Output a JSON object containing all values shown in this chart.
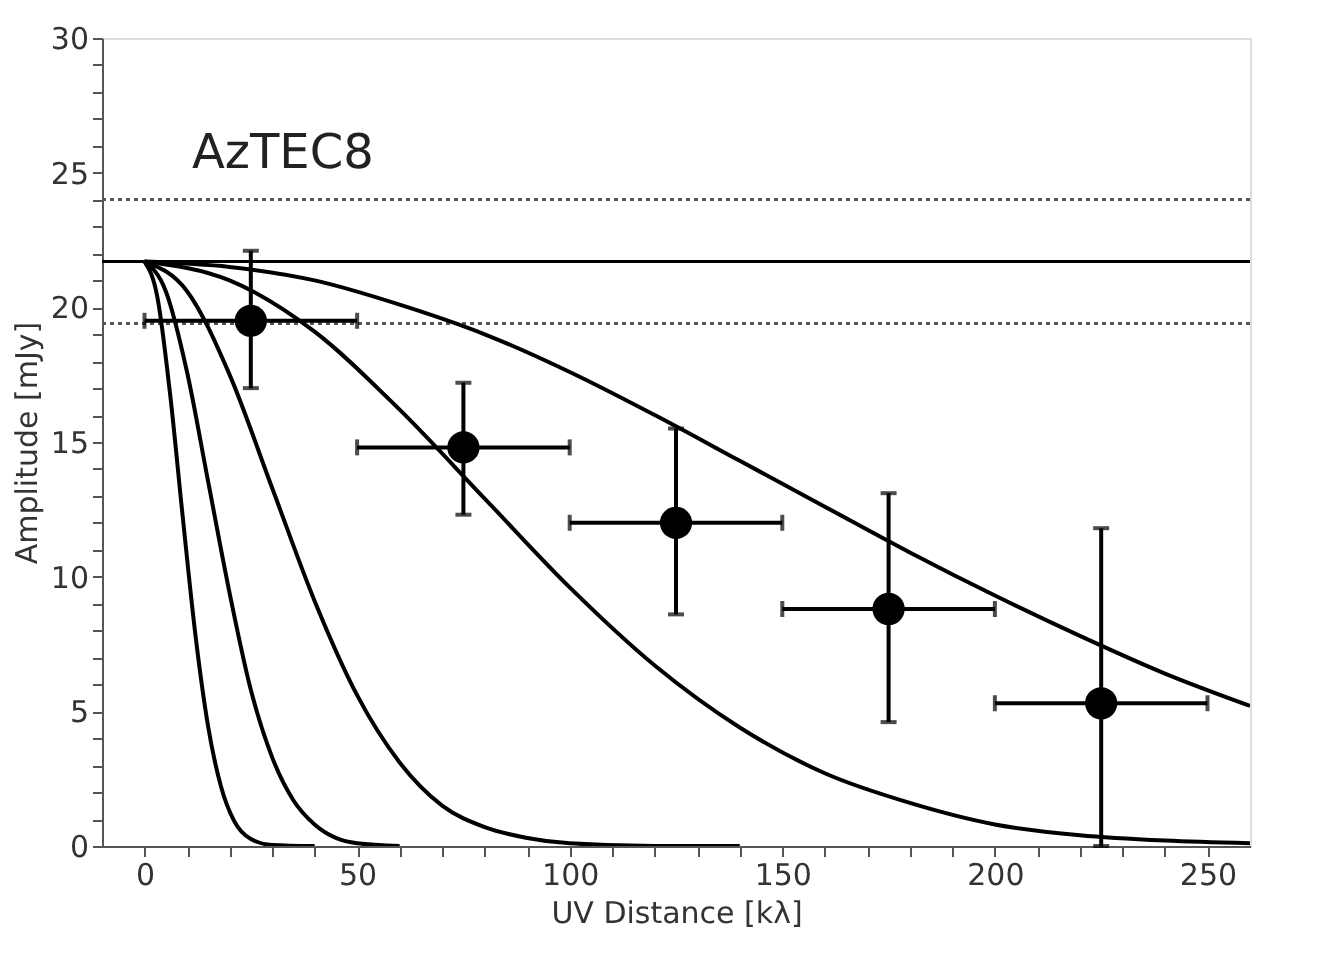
{
  "chart_data": {
    "type": "line",
    "xlabel": "UV Distance [kλ]",
    "ylabel": "Amplitude [mJy]",
    "xlim": [
      -10,
      260
    ],
    "ylim": [
      0,
      30
    ],
    "xticks": [
      0,
      {
        "value": 10,
        "label": null
      },
      {
        "value": 20,
        "label": null
      },
      {
        "value": 30,
        "label": null
      },
      {
        "value": 40,
        "label": null
      },
      50,
      {
        "value": 60,
        "label": null
      },
      {
        "value": 70,
        "label": null
      },
      {
        "value": 80,
        "label": null
      },
      {
        "value": 90,
        "label": null
      },
      100,
      {
        "value": 110,
        "label": null
      },
      {
        "value": 120,
        "label": null
      },
      {
        "value": 130,
        "label": null
      },
      {
        "value": 140,
        "label": null
      },
      150,
      {
        "value": 160,
        "label": null
      },
      {
        "value": 170,
        "label": null
      },
      {
        "value": 180,
        "label": null
      },
      {
        "value": 190,
        "label": null
      },
      200,
      {
        "value": 210,
        "label": null
      },
      {
        "value": 220,
        "label": null
      },
      {
        "value": 230,
        "label": null
      },
      {
        "value": 240,
        "label": null
      },
      250
    ],
    "yticks": [
      0,
      {
        "value": 1,
        "label": null
      },
      {
        "value": 2,
        "label": null
      },
      {
        "value": 3,
        "label": null
      },
      {
        "value": 4,
        "label": null
      },
      5,
      {
        "value": 6,
        "label": null
      },
      {
        "value": 7,
        "label": null
      },
      {
        "value": 8,
        "label": null
      },
      {
        "value": 9,
        "label": null
      },
      10,
      {
        "value": 11,
        "label": null
      },
      {
        "value": 12,
        "label": null
      },
      {
        "value": 13,
        "label": null
      },
      {
        "value": 14,
        "label": null
      },
      15,
      {
        "value": 16,
        "label": null
      },
      {
        "value": 17,
        "label": null
      },
      {
        "value": 18,
        "label": null
      },
      {
        "value": 19,
        "label": null
      },
      20,
      {
        "value": 21,
        "label": null
      },
      {
        "value": 22,
        "label": null
      },
      {
        "value": 23,
        "label": null
      },
      {
        "value": 24,
        "label": null
      },
      25,
      {
        "value": 26,
        "label": null
      },
      {
        "value": 27,
        "label": null
      },
      {
        "value": 28,
        "label": null
      },
      {
        "value": 29,
        "label": null
      },
      30
    ],
    "grid": false,
    "line_style": "solid",
    "marker": "none",
    "annotations": [
      "AzTEC8"
    ],
    "ref_lines": [
      {
        "axis": "y",
        "value": 21.7,
        "line_style": "solid",
        "color": "#000000"
      },
      {
        "axis": "y",
        "value": 24.0,
        "line_style": "dotted",
        "color": "#555555"
      },
      {
        "axis": "y",
        "value": 19.4,
        "line_style": "dotted",
        "color": "#555555"
      }
    ],
    "series": [
      {
        "color": "#000000",
        "x": [
          0,
          3,
          6,
          9,
          12,
          15,
          18,
          21,
          25,
          30,
          40
        ],
        "values": [
          21.7,
          20.4,
          16.8,
          12.2,
          7.8,
          4.4,
          2.2,
          0.95,
          0.26,
          0.04,
          0
        ]
      },
      {
        "color": "#000000",
        "x": [
          0,
          5,
          10,
          15,
          20,
          25,
          30,
          35,
          40,
          45,
          50,
          60
        ],
        "values": [
          21.7,
          20.6,
          17.6,
          13.5,
          9.4,
          5.8,
          3.3,
          1.7,
          0.8,
          0.3,
          0.1,
          0
        ]
      },
      {
        "color": "#000000",
        "x": [
          0,
          10,
          20,
          30,
          40,
          50,
          60,
          70,
          80,
          90,
          100,
          120,
          140
        ],
        "values": [
          21.7,
          20.6,
          17.5,
          13.3,
          9.1,
          5.6,
          3.1,
          1.5,
          0.7,
          0.3,
          0.1,
          0,
          0
        ]
      },
      {
        "color": "#000000",
        "x": [
          0,
          20,
          40,
          60,
          80,
          100,
          120,
          140,
          160,
          180,
          200,
          220,
          240,
          260
        ],
        "values": [
          21.7,
          21.0,
          19.1,
          16.2,
          12.9,
          9.6,
          6.7,
          4.4,
          2.7,
          1.6,
          0.8,
          0.4,
          0.2,
          0.1
        ]
      },
      {
        "color": "#000000",
        "x": [
          0,
          20,
          40,
          60,
          80,
          100,
          120,
          140,
          160,
          180,
          200,
          220,
          240,
          260
        ],
        "values": [
          21.7,
          21.5,
          21.0,
          20.1,
          19.0,
          17.6,
          16.0,
          14.3,
          12.6,
          10.9,
          9.3,
          7.8,
          6.4,
          5.2
        ]
      },
      {
        "type": "scatter",
        "color": "#000000",
        "marker": "circle",
        "x": [
          25,
          75,
          125,
          175,
          225
        ],
        "values": [
          19.5,
          14.8,
          12.0,
          8.8,
          5.3
        ],
        "errors": [
          [
            17.0,
            22.1
          ],
          [
            12.3,
            17.2
          ],
          [
            8.6,
            15.5
          ],
          [
            4.6,
            13.1
          ],
          [
            0,
            11.8
          ]
        ],
        "xerrors": [
          [
            0,
            50
          ],
          [
            50,
            100
          ],
          [
            100,
            150
          ],
          [
            150,
            200
          ],
          [
            200,
            250
          ]
        ]
      }
    ]
  }
}
